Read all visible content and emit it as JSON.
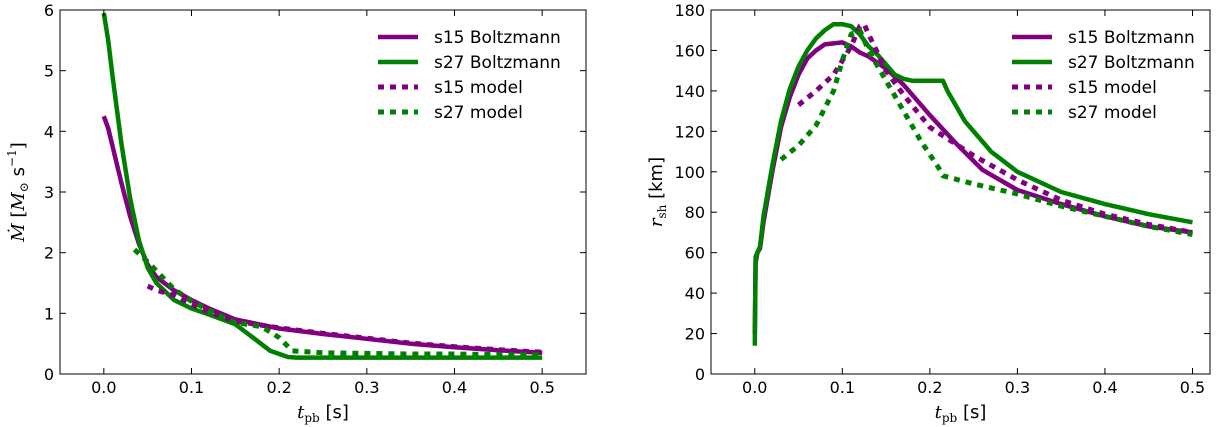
{
  "colors": {
    "s15": "#800080",
    "s27": "#008000"
  },
  "chart_data": [
    {
      "type": "line",
      "xlabel": "t_pb [s]",
      "ylabel": "Ṁ [M⊙ s⁻¹]",
      "xlim": [
        -0.05,
        0.55
      ],
      "ylim": [
        0,
        6
      ],
      "xticks": [
        "0.0",
        "0.1",
        "0.2",
        "0.3",
        "0.4",
        "0.5"
      ],
      "yticks": [
        "0",
        "1",
        "2",
        "3",
        "4",
        "5",
        "6"
      ],
      "legend_position": "top-right",
      "series": [
        {
          "name": "s15 Boltzmann",
          "color": "s15",
          "style": "solid",
          "x": [
            0.0,
            0.005,
            0.01,
            0.02,
            0.03,
            0.04,
            0.05,
            0.06,
            0.08,
            0.1,
            0.12,
            0.15,
            0.2,
            0.25,
            0.3,
            0.35,
            0.4,
            0.45,
            0.5
          ],
          "y": [
            4.25,
            4.05,
            3.75,
            3.15,
            2.6,
            2.15,
            1.8,
            1.6,
            1.38,
            1.22,
            1.08,
            0.9,
            0.75,
            0.66,
            0.58,
            0.5,
            0.44,
            0.39,
            0.35
          ]
        },
        {
          "name": "s27 Boltzmann",
          "color": "s27",
          "style": "solid",
          "x": [
            0.0,
            0.005,
            0.01,
            0.02,
            0.03,
            0.04,
            0.05,
            0.06,
            0.08,
            0.1,
            0.12,
            0.15,
            0.17,
            0.19,
            0.21,
            0.22,
            0.25,
            0.3,
            0.35,
            0.4,
            0.45,
            0.5
          ],
          "y": [
            5.95,
            5.5,
            4.9,
            3.8,
            2.9,
            2.2,
            1.75,
            1.5,
            1.22,
            1.08,
            0.98,
            0.82,
            0.6,
            0.38,
            0.28,
            0.27,
            0.27,
            0.27,
            0.27,
            0.27,
            0.27,
            0.27
          ]
        },
        {
          "name": "s15 model",
          "color": "s15",
          "style": "dotted",
          "x": [
            0.05,
            0.06,
            0.08,
            0.1,
            0.12,
            0.15,
            0.2,
            0.25,
            0.3,
            0.35,
            0.4,
            0.45,
            0.5
          ],
          "y": [
            1.45,
            1.38,
            1.3,
            1.15,
            1.02,
            0.87,
            0.76,
            0.67,
            0.59,
            0.51,
            0.45,
            0.4,
            0.36
          ]
        },
        {
          "name": "s27 model",
          "color": "s27",
          "style": "dotted",
          "x": [
            0.035,
            0.05,
            0.06,
            0.08,
            0.1,
            0.12,
            0.15,
            0.18,
            0.2,
            0.215,
            0.25,
            0.3,
            0.35,
            0.4,
            0.45,
            0.5
          ],
          "y": [
            2.05,
            1.85,
            1.7,
            1.4,
            1.2,
            1.05,
            0.85,
            0.78,
            0.6,
            0.38,
            0.35,
            0.34,
            0.33,
            0.33,
            0.32,
            0.32
          ]
        }
      ]
    },
    {
      "type": "line",
      "xlabel": "t_pb [s]",
      "ylabel": "r_sh [km]",
      "xlim": [
        -0.05,
        0.52
      ],
      "ylim": [
        0,
        180
      ],
      "xticks": [
        "0.0",
        "0.1",
        "0.2",
        "0.3",
        "0.4",
        "0.5"
      ],
      "yticks": [
        "0",
        "20",
        "40",
        "60",
        "80",
        "100",
        "120",
        "140",
        "160",
        "180"
      ],
      "legend_position": "top-right",
      "series": [
        {
          "name": "s15 Boltzmann",
          "color": "s15",
          "style": "solid",
          "x": [
            0.0,
            0.001,
            0.003,
            0.006,
            0.01,
            0.02,
            0.03,
            0.04,
            0.05,
            0.06,
            0.07,
            0.08,
            0.1,
            0.11,
            0.12,
            0.13,
            0.14,
            0.15,
            0.17,
            0.2,
            0.23,
            0.26,
            0.3,
            0.35,
            0.4,
            0.45,
            0.5
          ],
          "y": [
            20,
            55,
            60,
            62,
            75,
            100,
            122,
            137,
            148,
            156,
            160,
            163,
            164,
            162,
            159,
            157,
            154,
            151,
            143,
            128,
            114,
            101,
            91,
            84,
            78,
            73,
            70
          ]
        },
        {
          "name": "s27 Boltzmann",
          "color": "s27",
          "style": "solid",
          "x": [
            0.0,
            0.001,
            0.003,
            0.006,
            0.01,
            0.02,
            0.03,
            0.04,
            0.05,
            0.06,
            0.07,
            0.08,
            0.09,
            0.1,
            0.11,
            0.12,
            0.13,
            0.14,
            0.15,
            0.16,
            0.17,
            0.18,
            0.2,
            0.215,
            0.22,
            0.24,
            0.27,
            0.3,
            0.35,
            0.4,
            0.45,
            0.5
          ],
          "y": [
            14,
            58,
            60,
            63,
            78,
            103,
            125,
            141,
            152,
            160,
            166,
            170,
            173,
            173,
            172,
            168,
            162,
            158,
            153,
            148,
            146,
            145,
            145,
            145,
            140,
            125,
            110,
            100,
            90,
            84,
            79,
            75
          ]
        },
        {
          "name": "s15 model",
          "color": "s15",
          "style": "dotted",
          "x": [
            0.05,
            0.07,
            0.09,
            0.11,
            0.12,
            0.125,
            0.13,
            0.15,
            0.17,
            0.2,
            0.25,
            0.3,
            0.35,
            0.4,
            0.45,
            0.5
          ],
          "y": [
            133,
            140,
            148,
            162,
            172,
            173,
            168,
            150,
            138,
            122,
            108,
            96,
            86,
            79,
            74,
            70
          ]
        },
        {
          "name": "s27 model",
          "color": "s27",
          "style": "dotted",
          "x": [
            0.03,
            0.05,
            0.07,
            0.09,
            0.1,
            0.11,
            0.12,
            0.13,
            0.15,
            0.17,
            0.19,
            0.21,
            0.215,
            0.25,
            0.3,
            0.35,
            0.4,
            0.45,
            0.5
          ],
          "y": [
            106,
            113,
            123,
            140,
            155,
            168,
            170,
            160,
            145,
            130,
            115,
            102,
            98,
            94,
            89,
            83,
            78,
            73,
            69
          ]
        }
      ]
    }
  ]
}
